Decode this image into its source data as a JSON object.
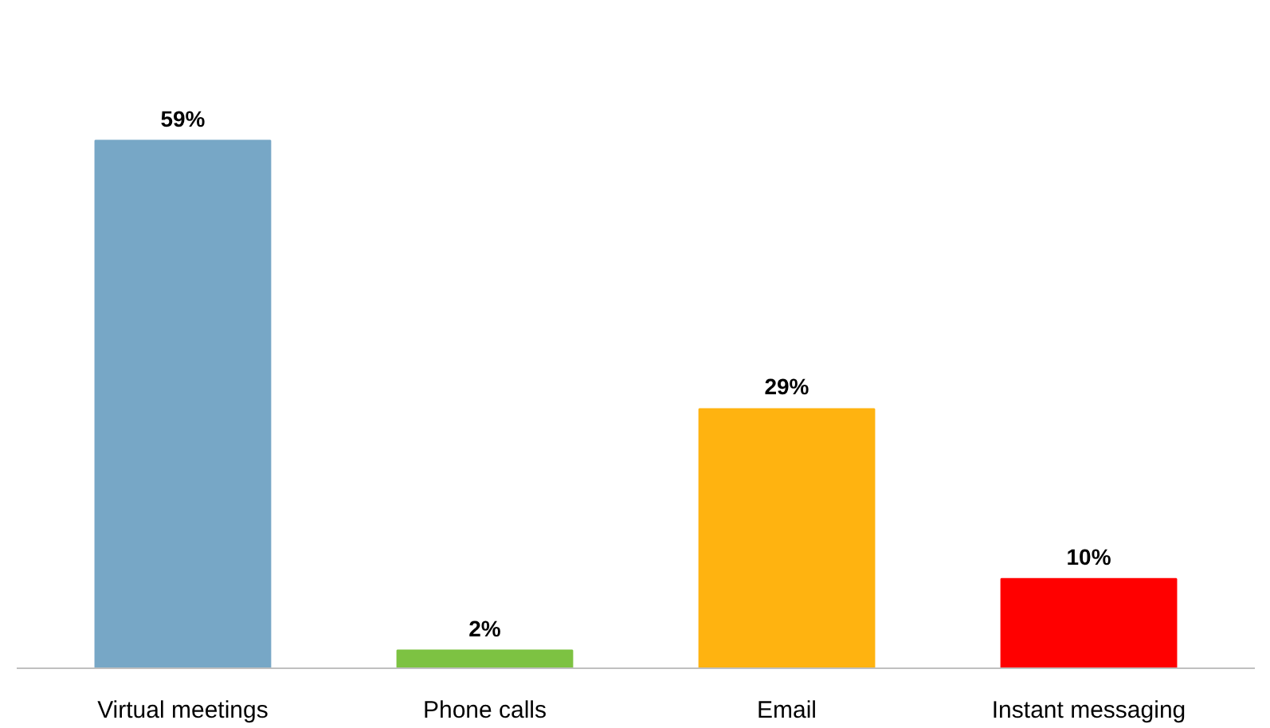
{
  "chart_data": {
    "type": "bar",
    "categories": [
      "Virtual meetings",
      "Phone calls",
      "Email",
      "Instant messaging"
    ],
    "values": [
      59,
      2,
      29,
      10
    ],
    "colors": [
      "#77a7c6",
      "#7dc242",
      "#ffb310",
      "#ff0000"
    ],
    "value_labels": [
      "59%",
      "2%",
      "29%",
      "10%"
    ],
    "grid": false
  }
}
